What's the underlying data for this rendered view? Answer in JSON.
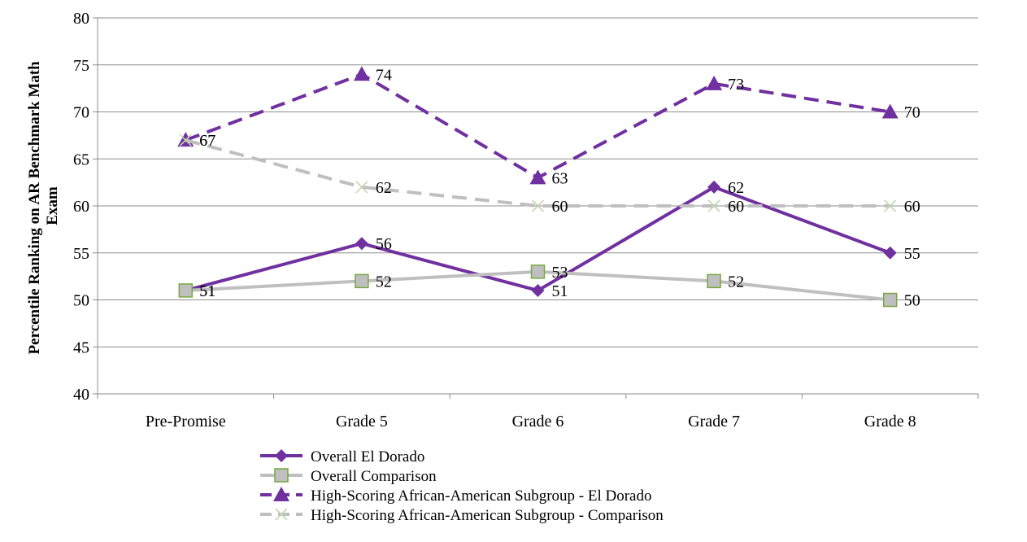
{
  "chart_data": {
    "type": "line",
    "title": "",
    "xlabel": "",
    "ylabel_lines": [
      "Percentile Ranking on AR Benchmark Math",
      "Exam"
    ],
    "ylim": [
      40,
      80
    ],
    "yticks": [
      40,
      45,
      50,
      55,
      60,
      65,
      70,
      75,
      80
    ],
    "grid": true,
    "legend_position": "bottom",
    "categories": [
      "Pre-Promise",
      "Grade 5",
      "Grade 6",
      "Grade 7",
      "Grade 8"
    ],
    "series": [
      {
        "name": "Overall El Dorado",
        "values": [
          51,
          56,
          51,
          62,
          55
        ],
        "color": "#7030a0",
        "dash": "solid",
        "marker": "diamond"
      },
      {
        "name": "Overall Comparison",
        "values": [
          51,
          52,
          53,
          52,
          50
        ],
        "color": "#bfbfbf",
        "dash": "solid",
        "marker": "square"
      },
      {
        "name": "High-Scoring African-American Subgroup - El Dorado",
        "values": [
          67,
          74,
          63,
          73,
          70
        ],
        "color": "#7030a0",
        "dash": "dashed",
        "marker": "triangle"
      },
      {
        "name": "High-Scoring African-American Subgroup - Comparison",
        "values": [
          67,
          62,
          60,
          60,
          60
        ],
        "color": "#bfbfbf",
        "dash": "dashed",
        "marker": "x"
      }
    ]
  }
}
